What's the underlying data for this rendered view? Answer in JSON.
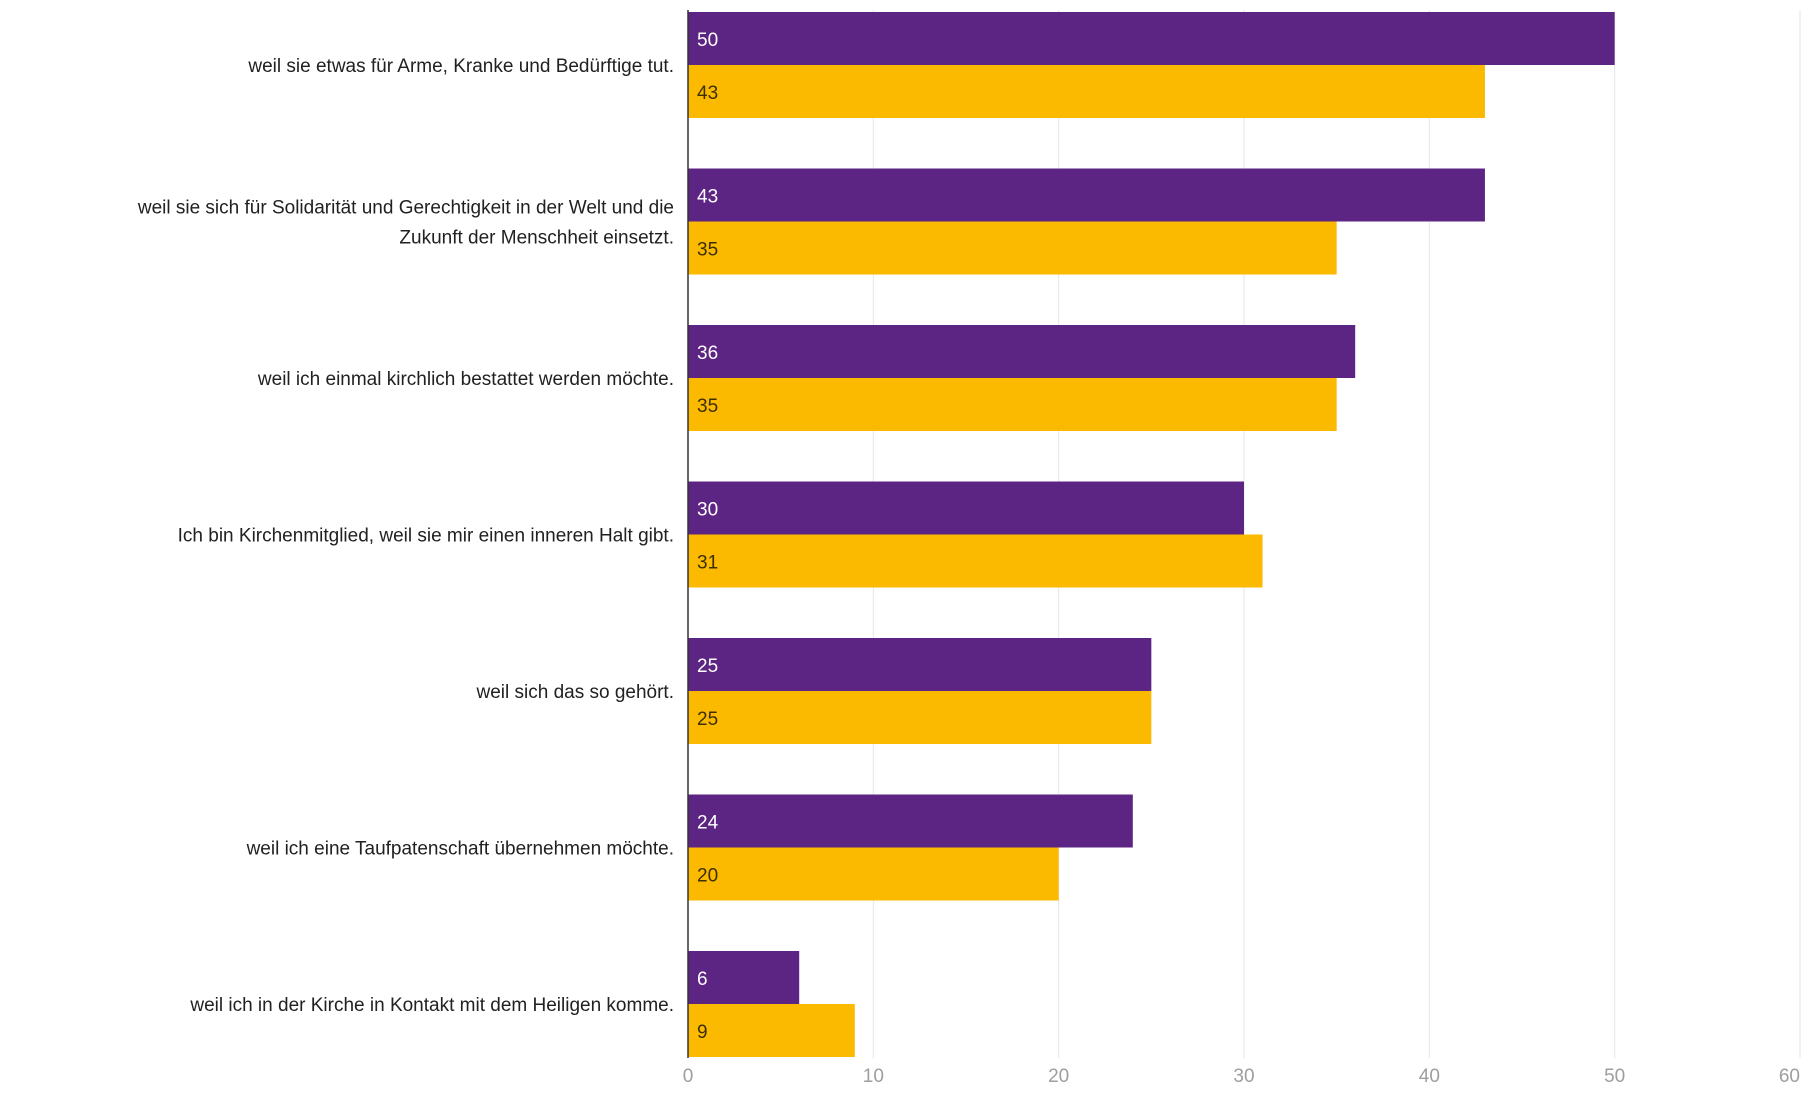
{
  "chart_data": {
    "type": "bar",
    "orientation": "horizontal",
    "categories": [
      "weil sie etwas für Arme, Kranke und Bedürftige tut.",
      "weil sie sich für Solidarität und Gerechtigkeit in der Welt und die Zukunft der Menschheit einsetzt.",
      "weil ich einmal kirchlich bestattet werden möchte.",
      "Ich bin Kirchenmitglied, weil sie mir einen inneren Halt gibt.",
      "weil sich das so gehört.",
      "weil ich eine Taufpatenschaft übernehmen möchte.",
      "weil ich in der Kirche in Kontakt mit dem Heiligen komme."
    ],
    "category_lines": [
      [
        "weil sie etwas für Arme, Kranke und Bedürftige tut."
      ],
      [
        "weil sie sich für Solidarität und Gerechtigkeit in der Welt und die",
        "Zukunft der Menschheit einsetzt."
      ],
      [
        "weil ich einmal kirchlich bestattet werden möchte."
      ],
      [
        "Ich bin Kirchenmitglied, weil sie mir einen inneren Halt gibt."
      ],
      [
        "weil sich das so gehört."
      ],
      [
        "weil ich eine Taufpatenschaft übernehmen möchte."
      ],
      [
        "weil ich in der Kirche in Kontakt mit dem Heiligen komme."
      ]
    ],
    "series": [
      {
        "values": [
          50,
          43,
          36,
          30,
          25,
          24,
          6
        ],
        "color": "#5c2483",
        "label_color": "#ffffff"
      },
      {
        "values": [
          43,
          35,
          35,
          31,
          25,
          20,
          9
        ],
        "color": "#fbb900",
        "label_color": "#3d3000"
      }
    ],
    "x_ticks": [
      0,
      10,
      20,
      30,
      40,
      50,
      60
    ],
    "xlim": [
      0,
      60
    ],
    "grid": true,
    "legend": "none",
    "title": "",
    "xlabel": "",
    "ylabel": ""
  }
}
